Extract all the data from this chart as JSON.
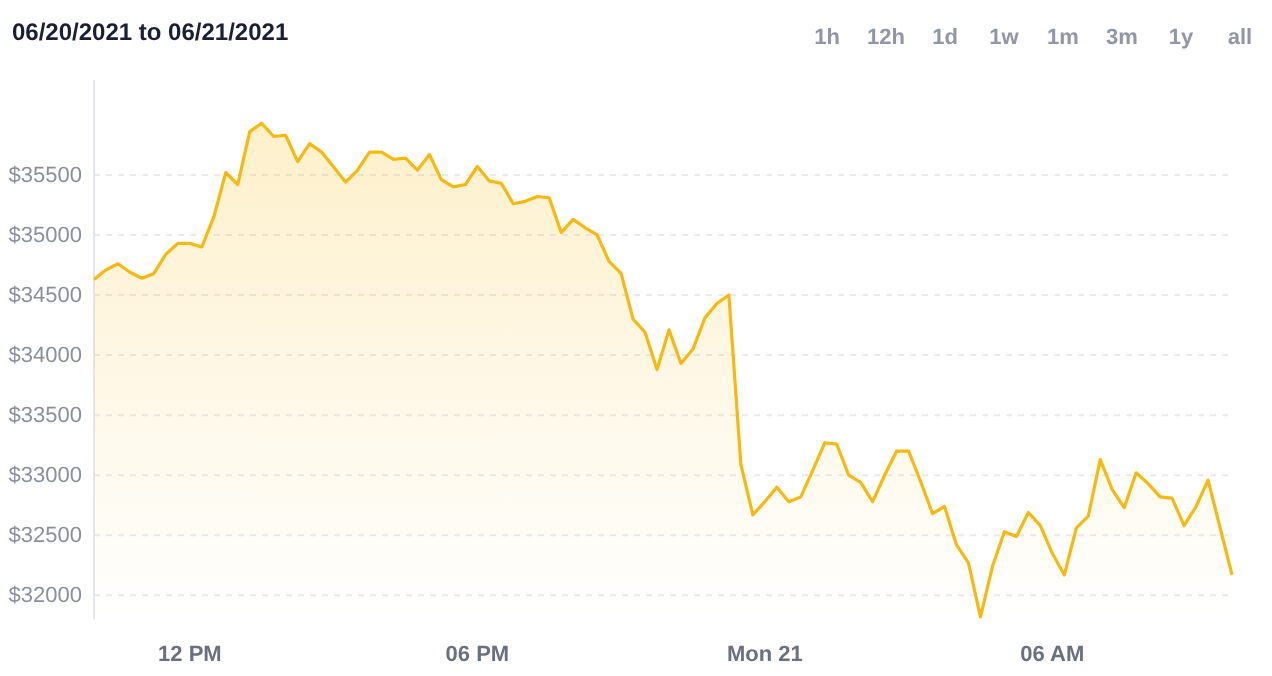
{
  "chart_data": {
    "type": "area",
    "title": "06/20/2021 to 06/21/2021",
    "annotations": [
      "1h",
      "12h",
      "1d",
      "1w",
      "1m",
      "3m",
      "1y",
      "all"
    ],
    "x": [
      "2021-06-20T10:00",
      "2021-06-20T10:15",
      "2021-06-20T10:30",
      "2021-06-20T10:45",
      "2021-06-20T11:00",
      "2021-06-20T11:15",
      "2021-06-20T11:30",
      "2021-06-20T11:45",
      "2021-06-20T12:00",
      "2021-06-20T12:15",
      "2021-06-20T12:30",
      "2021-06-20T12:45",
      "2021-06-20T13:00",
      "2021-06-20T13:15",
      "2021-06-20T13:30",
      "2021-06-20T13:45",
      "2021-06-20T14:00",
      "2021-06-20T14:15",
      "2021-06-20T14:30",
      "2021-06-20T14:45",
      "2021-06-20T15:15",
      "2021-06-20T15:30",
      "2021-06-20T15:45",
      "2021-06-20T16:00",
      "2021-06-20T16:15",
      "2021-06-20T16:30",
      "2021-06-20T16:45",
      "2021-06-20T17:00",
      "2021-06-20T17:15",
      "2021-06-20T17:30",
      "2021-06-20T17:45",
      "2021-06-20T18:00",
      "2021-06-20T18:15",
      "2021-06-20T18:30",
      "2021-06-20T18:45",
      "2021-06-20T19:00",
      "2021-06-20T19:15",
      "2021-06-20T19:30",
      "2021-06-20T19:45",
      "2021-06-20T20:00",
      "2021-06-20T20:15",
      "2021-06-20T20:30",
      "2021-06-20T20:45",
      "2021-06-20T21:00",
      "2021-06-20T21:15",
      "2021-06-20T21:30",
      "2021-06-20T21:45",
      "2021-06-20T22:00",
      "2021-06-20T22:15",
      "2021-06-20T22:30",
      "2021-06-20T22:45",
      "2021-06-20T23:00",
      "2021-06-20T23:15",
      "2021-06-20T23:30",
      "2021-06-20T23:45",
      "2021-06-21T00:00",
      "2021-06-21T00:15",
      "2021-06-21T00:30",
      "2021-06-21T00:45",
      "2021-06-21T01:00",
      "2021-06-21T01:15",
      "2021-06-21T01:30",
      "2021-06-21T01:45",
      "2021-06-21T02:00",
      "2021-06-21T02:15",
      "2021-06-21T02:30",
      "2021-06-21T02:45",
      "2021-06-21T03:00",
      "2021-06-21T03:15",
      "2021-06-21T03:30",
      "2021-06-21T03:45",
      "2021-06-21T04:00",
      "2021-06-21T04:15",
      "2021-06-21T04:30",
      "2021-06-21T04:45",
      "2021-06-21T05:00",
      "2021-06-21T05:15",
      "2021-06-21T05:30",
      "2021-06-21T05:45",
      "2021-06-21T06:00",
      "2021-06-21T06:15",
      "2021-06-21T06:30",
      "2021-06-21T06:45",
      "2021-06-21T07:00",
      "2021-06-21T07:15",
      "2021-06-21T07:30",
      "2021-06-21T07:45",
      "2021-06-21T08:00",
      "2021-06-21T08:15",
      "2021-06-21T08:30",
      "2021-06-21T08:45",
      "2021-06-21T09:00",
      "2021-06-21T09:15",
      "2021-06-21T09:45"
    ],
    "series": [
      {
        "color": "#f7b90f",
        "values": [
          34630,
          34710,
          34760,
          34690,
          34640,
          34680,
          34840,
          34930,
          34930,
          34900,
          35150,
          35520,
          35420,
          35860,
          35930,
          35820,
          35830,
          35610,
          35760,
          35690,
          35440,
          35540,
          35690,
          35690,
          35630,
          35640,
          35540,
          35670,
          35460,
          35400,
          35420,
          35570,
          35450,
          35430,
          35260,
          35280,
          35320,
          35310,
          35020,
          35130,
          35060,
          35000,
          34780,
          34680,
          34300,
          34190,
          33880,
          34210,
          33930,
          34050,
          34310,
          34430,
          34500,
          33090,
          32670,
          32780,
          32900,
          32780,
          32820,
          33040,
          33270,
          33260,
          33000,
          32940,
          32780,
          33000,
          33200,
          33200,
          32950,
          32680,
          32740,
          32420,
          32270,
          31820,
          32240,
          32530,
          32490,
          32690,
          32580,
          32350,
          32170,
          32560,
          32660,
          33130,
          32880,
          32730,
          33020,
          32930,
          32820,
          32810,
          32580,
          32740,
          32960,
          32170
        ]
      }
    ],
    "xlim": [
      "2021-06-20T10:00",
      "2021-06-21T09:45"
    ],
    "xticks": [
      {
        "value": "2021-06-20T12:00",
        "label": "12 PM"
      },
      {
        "value": "2021-06-20T18:00",
        "label": "06 PM"
      },
      {
        "value": "2021-06-21T00:00",
        "label": "Mon 21"
      },
      {
        "value": "2021-06-21T06:00",
        "label": "06 AM"
      }
    ],
    "ylim": [
      31800,
      36290
    ],
    "yticks": [
      {
        "value": 32000,
        "label": "$32000"
      },
      {
        "value": 32500,
        "label": "$32500"
      },
      {
        "value": 33000,
        "label": "$33000"
      },
      {
        "value": 33500,
        "label": "$33500"
      },
      {
        "value": 34000,
        "label": "$34000"
      },
      {
        "value": 34500,
        "label": "$34500"
      },
      {
        "value": 35000,
        "label": "$35000"
      },
      {
        "value": 35500,
        "label": "$35500"
      }
    ],
    "grid": "y",
    "line_style": "solid"
  }
}
